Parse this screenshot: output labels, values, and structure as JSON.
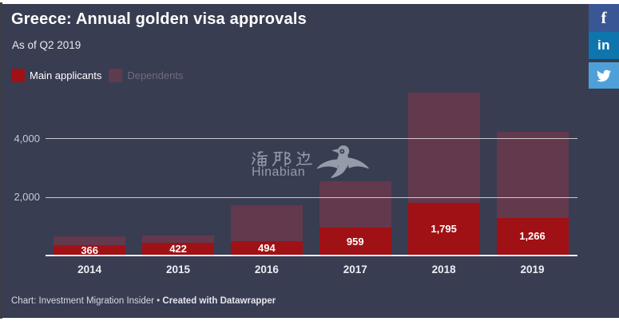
{
  "header": {
    "title": "Greece: Annual golden visa approvals",
    "subtitle": "As of Q2 2019"
  },
  "legend": [
    {
      "label": "Main applicants",
      "color": "#a01115",
      "text_color": "#ffffff"
    },
    {
      "label": "Dependents",
      "color": "#5e3b4e",
      "text_color": "#716c7e"
    }
  ],
  "social_buttons": [
    {
      "name": "facebook",
      "icon": "facebook-f-icon",
      "label": "f",
      "color": "#3a5795"
    },
    {
      "name": "linkedin",
      "icon": "linkedin-in-icon",
      "label": "in",
      "color": "#0f75ad"
    },
    {
      "name": "twitter",
      "icon": "twitter-bird-icon",
      "label": "",
      "color": "#4fa0d8"
    }
  ],
  "watermark": {
    "cn": "海那边",
    "en": "Hinabian"
  },
  "footer": {
    "prefix": "Chart: Investment Migration Insider • ",
    "bold": "Created with Datawrapper"
  },
  "chart_data": {
    "type": "bar",
    "stacked": true,
    "title": "Greece: Annual golden visa approvals",
    "subtitle": "As of Q2 2019",
    "categories": [
      "2014",
      "2015",
      "2016",
      "2017",
      "2018",
      "2019"
    ],
    "series": [
      {
        "name": "Main applicants",
        "color": "#a01115",
        "values": [
          366,
          422,
          494,
          959,
          1795,
          1266
        ],
        "labels": [
          "366",
          "422",
          "494",
          "959",
          "1,795",
          "1,266"
        ]
      },
      {
        "name": "Dependents",
        "color": "#63394d",
        "values": [
          285,
          260,
          1220,
          1580,
          3760,
          2960
        ]
      }
    ],
    "totals": [
      651,
      682,
      1714,
      2539,
      5555,
      4226
    ],
    "y_ticks": [
      {
        "value": 2000,
        "label": "2,000"
      },
      {
        "value": 4000,
        "label": "4,000"
      }
    ],
    "ylim": [
      0,
      5600
    ],
    "grid": true,
    "legend_position": "top-left",
    "background": "#383d52"
  }
}
